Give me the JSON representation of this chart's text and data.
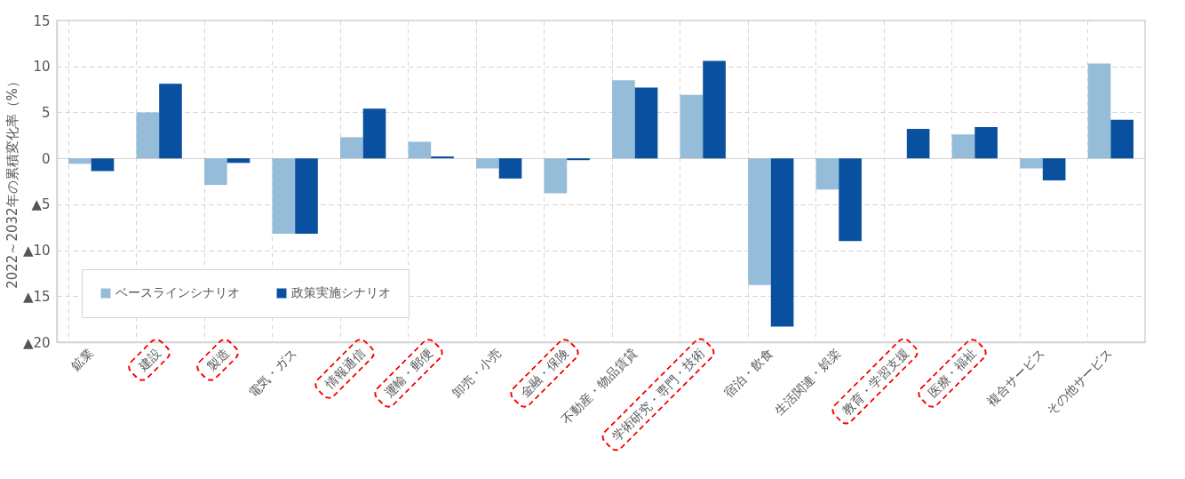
{
  "chart_data": {
    "type": "bar",
    "ylabel": "2022～2032年の累積変化率（%）",
    "categories": [
      "鉱業",
      "建設",
      "製造",
      "電気・ガス",
      "情報通信",
      "運輸・郵便",
      "卸売・小売",
      "金融・保険",
      "不動産・物品賃貸",
      "学術研究・専門・技術",
      "宿泊・飲食",
      "生活関連・娯楽",
      "教育・学習支援",
      "医療・福祉",
      "複合サービス",
      "その他サービス"
    ],
    "series": [
      {
        "name": "ベースラインシナリオ",
        "color": "#95bcd9",
        "values": [
          -0.6,
          5.0,
          -2.9,
          -8.2,
          2.3,
          1.8,
          -1.1,
          -3.8,
          8.5,
          6.9,
          -13.8,
          -3.4,
          0,
          2.6,
          -1.1,
          10.3
        ]
      },
      {
        "name": "政策実施シナリオ",
        "color": "#0a50a0",
        "values": [
          -1.4,
          8.1,
          -0.5,
          -8.2,
          5.4,
          0.2,
          -2.2,
          -0.2,
          7.7,
          10.6,
          -18.3,
          -9.0,
          3.2,
          3.4,
          -2.4,
          4.2
        ]
      }
    ],
    "ylim": [
      -20,
      15
    ],
    "yticks": [
      {
        "value": -20,
        "label": "▲20"
      },
      {
        "value": -15,
        "label": "▲15"
      },
      {
        "value": -10,
        "label": "▲10"
      },
      {
        "value": -5,
        "label": "▲5"
      },
      0,
      5,
      10,
      15
    ],
    "grid": true,
    "legend": "bottom left"
  }
}
